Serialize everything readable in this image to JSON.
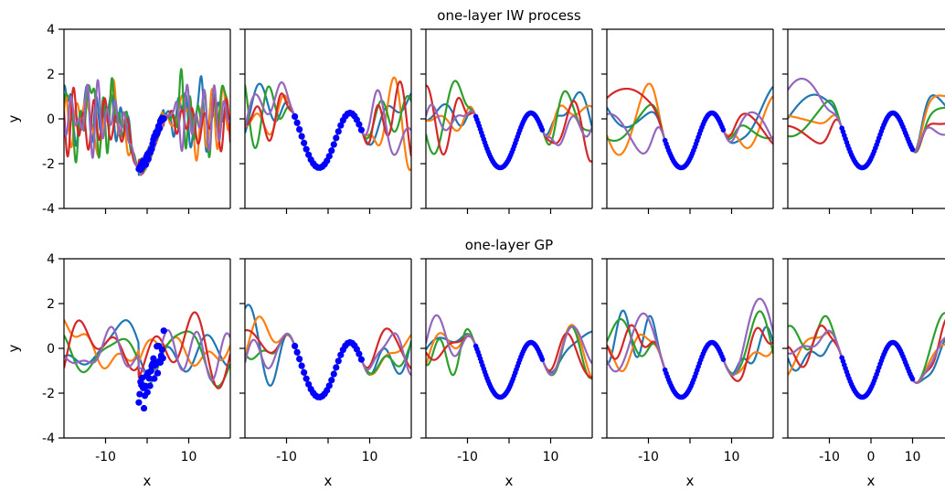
{
  "chart_data": {
    "type": "line",
    "layout": {
      "rows": 2,
      "cols": 5,
      "sharey": true
    },
    "xlim": [
      -20,
      20
    ],
    "ylim": [
      -4,
      4
    ],
    "xticks": [
      -10,
      0,
      10
    ],
    "xtick_labels": [
      "-10",
      "",
      "10"
    ],
    "xtick_labels_last": [
      "-10",
      "0",
      "10"
    ],
    "yticks": [
      -4,
      -2,
      0,
      2,
      4
    ],
    "ytick_labels": [
      "-4",
      "-2",
      "0",
      "2",
      "4"
    ],
    "xlabel": "x",
    "ylabel": "y",
    "rows": [
      {
        "title": "one-layer IW process",
        "model": "iw"
      },
      {
        "title": "one-layer GP",
        "model": "gp"
      }
    ],
    "panels": [
      {
        "data_range": [
          -2,
          4
        ],
        "n_points": 30,
        "scatter": true
      },
      {
        "data_range": [
          -8,
          8
        ],
        "n_points": 30,
        "scatter": true
      },
      {
        "data_range": [
          -8,
          8
        ],
        "n_points": 60,
        "scatter": false
      },
      {
        "data_range": [
          -6,
          8
        ],
        "n_points": 50,
        "scatter": false
      },
      {
        "data_range": [
          -7,
          10
        ],
        "n_points": 60,
        "scatter": false
      }
    ],
    "series_colors": [
      "#1f77b4",
      "#ff7f0e",
      "#2ca02c",
      "#d62728",
      "#9467bd"
    ],
    "observation_color": "#0000ff"
  }
}
